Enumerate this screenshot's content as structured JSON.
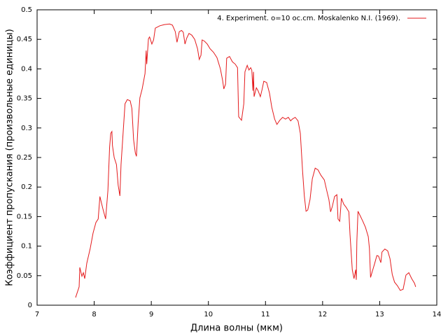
{
  "chart_data": {
    "type": "line",
    "xlabel": "Длина волны (мкм)",
    "ylabel": "Коэффициент пропускания (произвольные единицы)",
    "xlim": [
      7,
      14
    ],
    "xticks": [
      7,
      8,
      9,
      10,
      11,
      12,
      13,
      14
    ],
    "ylim": [
      0,
      0.5
    ],
    "yticks": [
      0,
      0.05,
      0.1,
      0.15,
      0.2,
      0.25,
      0.3,
      0.35,
      0.4,
      0.45,
      0.5
    ],
    "legend": "top-right",
    "x": [
      7.674,
      7.736,
      7.748,
      7.785,
      7.81,
      7.834,
      7.87,
      7.93,
      7.98,
      8.03,
      8.07,
      8.1,
      8.15,
      8.2,
      8.24,
      8.27,
      8.29,
      8.31,
      8.32,
      8.35,
      8.39,
      8.42,
      8.45,
      8.47,
      8.51,
      8.54,
      8.58,
      8.63,
      8.66,
      8.69,
      8.72,
      8.74,
      8.77,
      8.8,
      8.84,
      8.89,
      8.91,
      8.92,
      8.95,
      8.97,
      9.01,
      9.04,
      9.07,
      9.15,
      9.23,
      9.32,
      9.37,
      9.42,
      9.45,
      9.49,
      9.53,
      9.56,
      9.59,
      9.62,
      9.66,
      9.71,
      9.76,
      9.81,
      9.84,
      9.87,
      9.89,
      9.93,
      9.98,
      10.03,
      10.09,
      10.15,
      10.21,
      10.25,
      10.27,
      10.3,
      10.32,
      10.37,
      10.42,
      10.47,
      10.51,
      10.53,
      10.58,
      10.62,
      10.64,
      10.68,
      10.71,
      10.74,
      10.76,
      10.78,
      10.79,
      10.8,
      10.84,
      10.87,
      10.91,
      10.94,
      10.97,
      11.02,
      11.07,
      11.11,
      11.16,
      11.2,
      11.25,
      11.3,
      11.35,
      11.4,
      11.44,
      11.47,
      11.52,
      11.57,
      11.61,
      11.65,
      11.68,
      11.71,
      11.74,
      11.78,
      11.82,
      11.87,
      11.92,
      11.97,
      12.03,
      12.08,
      12.11,
      12.14,
      12.17,
      12.21,
      12.25,
      12.27,
      12.3,
      12.33,
      12.37,
      12.41,
      12.46,
      12.48,
      12.52,
      12.55,
      12.58,
      12.59,
      12.6,
      12.62,
      12.65,
      12.7,
      12.75,
      12.8,
      12.82,
      12.84,
      12.87,
      12.91,
      12.95,
      12.98,
      13.02,
      13.04,
      13.09,
      13.14,
      13.18,
      13.22,
      13.26,
      13.31,
      13.36,
      13.41,
      13.46,
      13.51,
      13.56,
      13.61,
      13.63
    ],
    "series": [
      {
        "name": "4. Experiment. o=10 oc.cm. Moskalenko N.I. (1969).",
        "color": "#e41a1c",
        "values": [
          0.013,
          0.031,
          0.064,
          0.049,
          0.055,
          0.045,
          0.071,
          0.096,
          0.122,
          0.14,
          0.146,
          0.184,
          0.164,
          0.146,
          0.194,
          0.268,
          0.291,
          0.294,
          0.27,
          0.25,
          0.238,
          0.203,
          0.185,
          0.238,
          0.297,
          0.341,
          0.348,
          0.346,
          0.333,
          0.28,
          0.258,
          0.252,
          0.309,
          0.351,
          0.366,
          0.392,
          0.431,
          0.408,
          0.451,
          0.454,
          0.442,
          0.449,
          0.469,
          0.473,
          0.475,
          0.476,
          0.474,
          0.463,
          0.445,
          0.463,
          0.465,
          0.462,
          0.442,
          0.452,
          0.46,
          0.457,
          0.45,
          0.434,
          0.416,
          0.423,
          0.449,
          0.447,
          0.442,
          0.434,
          0.428,
          0.419,
          0.4,
          0.38,
          0.366,
          0.374,
          0.418,
          0.421,
          0.412,
          0.408,
          0.402,
          0.319,
          0.313,
          0.341,
          0.395,
          0.406,
          0.398,
          0.402,
          0.398,
          0.363,
          0.395,
          0.353,
          0.368,
          0.363,
          0.353,
          0.365,
          0.379,
          0.377,
          0.359,
          0.335,
          0.315,
          0.306,
          0.313,
          0.318,
          0.315,
          0.318,
          0.312,
          0.315,
          0.318,
          0.312,
          0.291,
          0.226,
          0.185,
          0.159,
          0.161,
          0.179,
          0.214,
          0.232,
          0.229,
          0.22,
          0.212,
          0.191,
          0.179,
          0.158,
          0.167,
          0.184,
          0.187,
          0.146,
          0.142,
          0.181,
          0.171,
          0.166,
          0.158,
          0.12,
          0.06,
          0.045,
          0.06,
          0.043,
          0.108,
          0.159,
          0.153,
          0.143,
          0.132,
          0.116,
          0.096,
          0.047,
          0.057,
          0.07,
          0.084,
          0.083,
          0.072,
          0.09,
          0.095,
          0.092,
          0.079,
          0.052,
          0.039,
          0.033,
          0.025,
          0.027,
          0.051,
          0.055,
          0.045,
          0.037,
          0.031
        ]
      }
    ]
  }
}
